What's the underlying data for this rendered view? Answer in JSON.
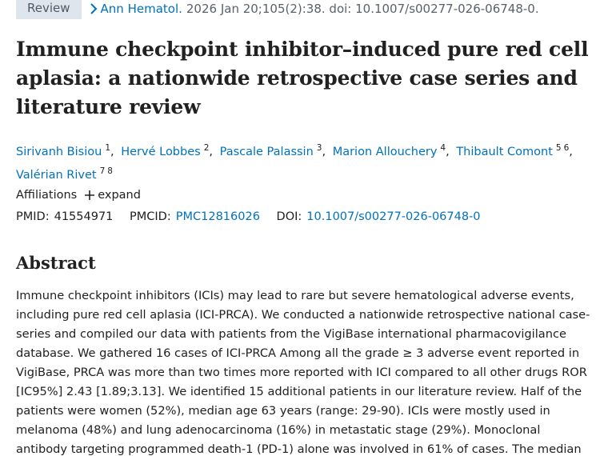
{
  "header": {
    "publication_type": "Review",
    "journal": "Ann Hematol.",
    "citation": "2026 Jan 20;105(2):38. doi: 10.1007/s00277-026-06748-0."
  },
  "title": "Immune checkpoint inhibitor–induced pure red cell aplasia: a nationwide retrospective case series and literature review",
  "authors": [
    {
      "name": "Sirivanh Bisiou",
      "affiliations": [
        "1"
      ]
    },
    {
      "name": "Hervé Lobbes",
      "affiliations": [
        "2"
      ]
    },
    {
      "name": "Pascale Palassin",
      "affiliations": [
        "3"
      ]
    },
    {
      "name": "Marion Allouchery",
      "affiliations": [
        "4"
      ]
    },
    {
      "name": "Thibault Comont",
      "affiliations": [
        "5",
        "6"
      ]
    },
    {
      "name": "Valérian Rivet",
      "affiliations": [
        "7",
        "8"
      ]
    }
  ],
  "affiliations": {
    "label": "Affiliations",
    "toggle": "expand"
  },
  "identifiers": {
    "pmid_label": "PMID:",
    "pmid": "41554971",
    "pmcid_label": "PMCID:",
    "pmcid": "PMC12816026",
    "doi_label": "DOI:",
    "doi": "10.1007/s00277-026-06748-0"
  },
  "abstract": {
    "heading": "Abstract",
    "text": "Immune checkpoint inhibitors (ICIs) may lead to rare but severe hematological adverse events, including pure red cell aplasia (ICI-PRCA). We conducted a nationwide retrospective national case-series and compiled our data with patients from the VigiBase international pharmacovigilance database. We gathered 16 cases of ICI-PRCA Among all the grade ≥ 3 adverse event reported in VigiBase, PRCA was more than two times more reported with ICI compared to all other drugs ROR [IC95%] 2.43 [1.89;3.13]. We identified 15 additional patients in our literature review. Half of the patients were women (52%), median age 63 years (range: 29-90). ICIs were mostly used in melanoma (48%) and lung adenocarcinoma (16%) in metastatic stage (29%). Monoclonal antibody targeting programmed death-1 (PD-1) alone was involved in 61% of cases. The median time from ICI initiation"
  }
}
